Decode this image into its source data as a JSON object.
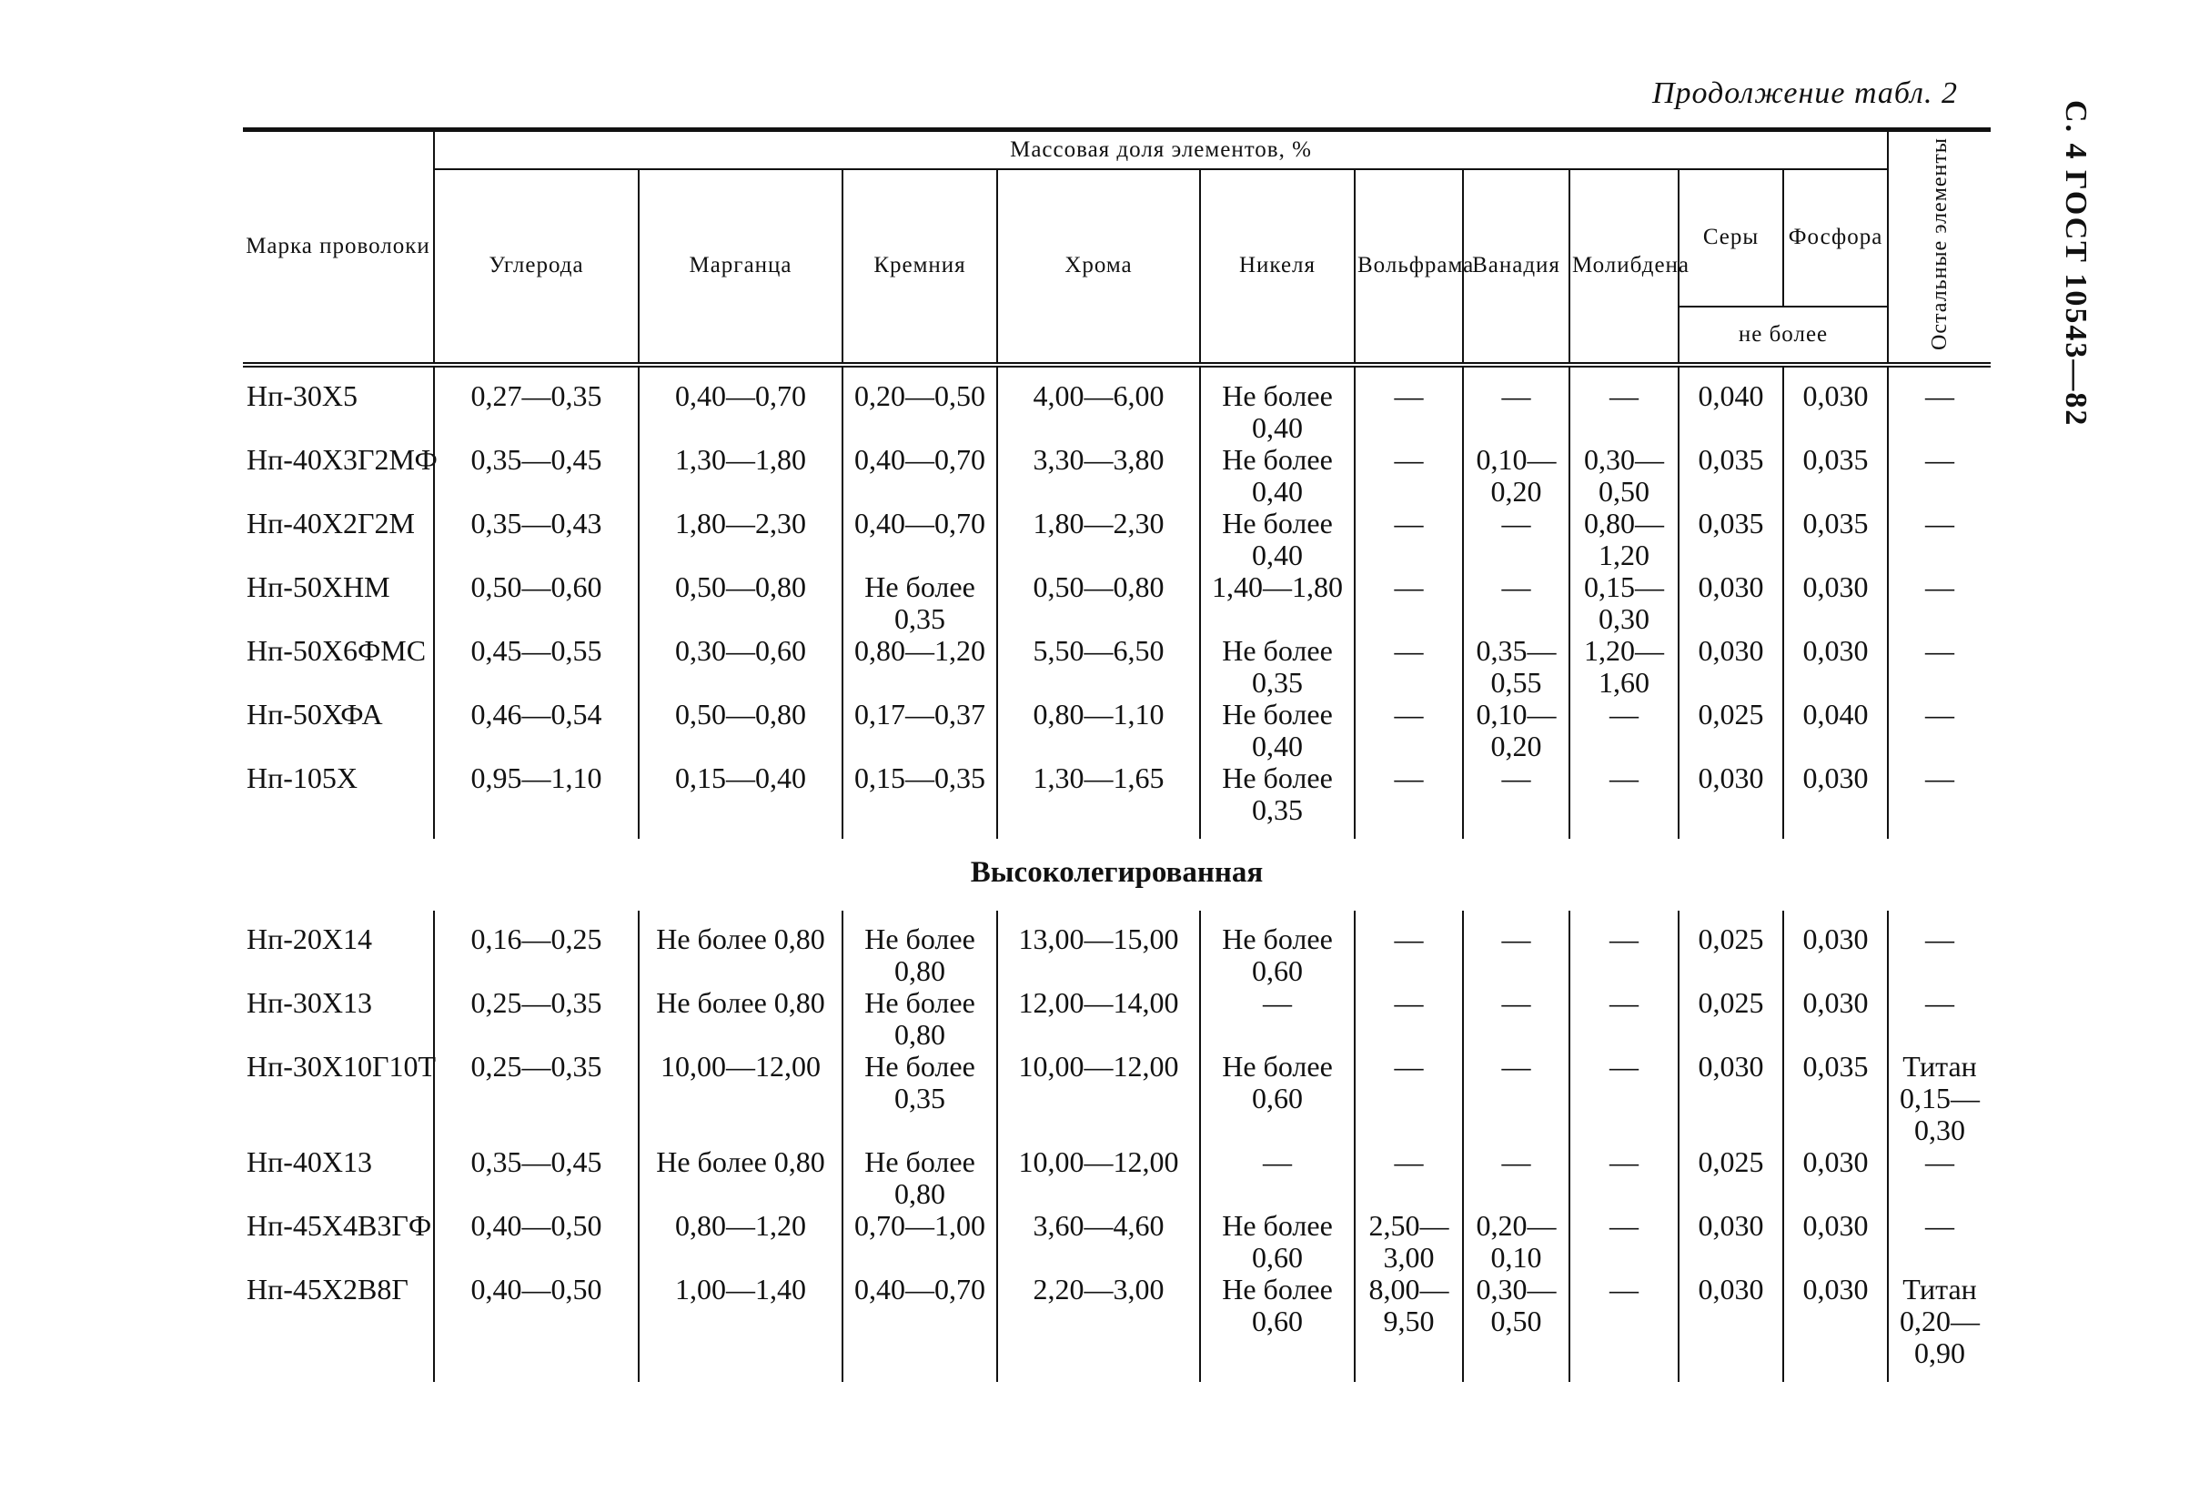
{
  "header": {
    "continuation": "Продолжение табл. 2",
    "side": "С. 4 ГОСТ 10543—82"
  },
  "table": {
    "head": {
      "mark": "Марка проволоки",
      "mass": "Массовая доля элементов, %",
      "elements": [
        "Углерода",
        "Марганца",
        "Кремния",
        "Хрома",
        "Никеля",
        "Вольфрама",
        "Ванадия",
        "Молибдена"
      ],
      "sulfur": "Серы",
      "phosphorus": "Фосфора",
      "max": "не более",
      "other": "Остальные элементы"
    },
    "groups": [
      {
        "rows": [
          [
            "Нп-30Х5",
            "0,27—0,35",
            "0,40—0,70",
            "0,20—0,50",
            "4,00—6,00",
            "Не более 0,40",
            "—",
            "—",
            "—",
            "0,040",
            "0,030",
            "—"
          ],
          [
            "Нп-40Х3Г2МФ",
            "0,35—0,45",
            "1,30—1,80",
            "0,40—0,70",
            "3,30—3,80",
            "Не более 0,40",
            "—",
            "0,10—0,20",
            "0,30—0,50",
            "0,035",
            "0,035",
            "—"
          ],
          [
            "Нп-40Х2Г2М",
            "0,35—0,43",
            "1,80—2,30",
            "0,40—0,70",
            "1,80—2,30",
            "Не более 0,40",
            "—",
            "—",
            "0,80—1,20",
            "0,035",
            "0,035",
            "—"
          ],
          [
            "Нп-50ХНМ",
            "0,50—0,60",
            "0,50—0,80",
            "Не более 0,35",
            "0,50—0,80",
            "1,40—1,80",
            "—",
            "—",
            "0,15—0,30",
            "0,030",
            "0,030",
            "—"
          ],
          [
            "Нп-50Х6ФМС",
            "0,45—0,55",
            "0,30—0,60",
            "0,80—1,20",
            "5,50—6,50",
            "Не более 0,35",
            "—",
            "0,35—0,55",
            "1,20—1,60",
            "0,030",
            "0,030",
            "—"
          ],
          [
            "Нп-50ХФА",
            "0,46—0,54",
            "0,50—0,80",
            "0,17—0,37",
            "0,80—1,10",
            "Не более 0,40",
            "—",
            "0,10—0,20",
            "—",
            "0,025",
            "0,040",
            "—"
          ],
          [
            "Нп-105Х",
            "0,95—1,10",
            "0,15—0,40",
            "0,15—0,35",
            "1,30—1,65",
            "Не более 0,35",
            "—",
            "—",
            "—",
            "0,030",
            "0,030",
            "—"
          ]
        ]
      },
      {
        "title": "Высоколегированная",
        "rows": [
          [
            "Нп-20Х14",
            "0,16—0,25",
            "Не более 0,80",
            "Не более 0,80",
            "13,00—15,00",
            "Не более 0,60",
            "—",
            "—",
            "—",
            "0,025",
            "0,030",
            "—"
          ],
          [
            "Нп-30Х13",
            "0,25—0,35",
            "Не более 0,80",
            "Не более 0,80",
            "12,00—14,00",
            "—",
            "—",
            "—",
            "—",
            "0,025",
            "0,030",
            "—"
          ],
          [
            "Нп-30Х10Г10Т",
            "0,25—0,35",
            "10,00—12,00",
            "Не более 0,35",
            "10,00—12,00",
            "Не более 0,60",
            "—",
            "—",
            "—",
            "0,030",
            "0,035",
            "Титан 0,15—0,30"
          ],
          [
            "Нп-40Х13",
            "0,35—0,45",
            "Не более 0,80",
            "Не более 0,80",
            "10,00—12,00",
            "—",
            "—",
            "—",
            "—",
            "0,025",
            "0,030",
            "—"
          ],
          [
            "Нп-45Х4В3ГФ",
            "0,40—0,50",
            "0,80—1,20",
            "0,70—1,00",
            "3,60—4,60",
            "Не более 0,60",
            "2,50—3,00",
            "0,20—0,10",
            "—",
            "0,030",
            "0,030",
            "—"
          ],
          [
            "Нп-45Х2В8Г",
            "0,40—0,50",
            "1,00—1,40",
            "0,40—0,70",
            "2,20—3,00",
            "Не более 0,60",
            "8,00—9,50",
            "0,30—0,50",
            "—",
            "0,030",
            "0,030",
            "Титан 0,20—0,90"
          ]
        ]
      }
    ]
  }
}
